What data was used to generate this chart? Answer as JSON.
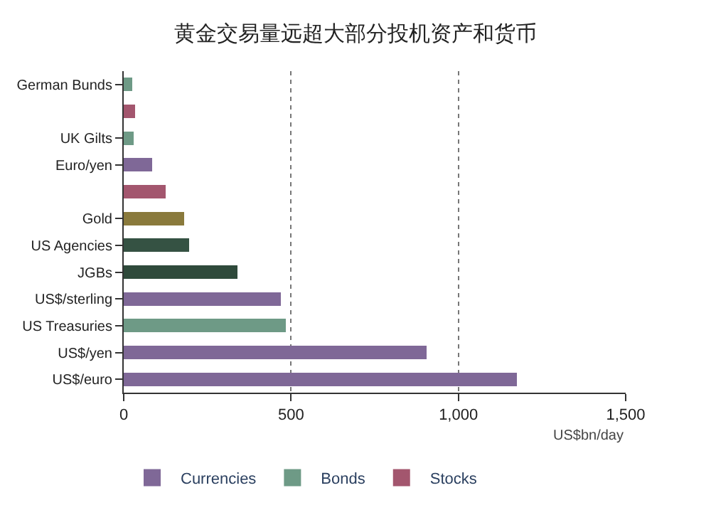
{
  "chart_data": {
    "type": "bar",
    "orientation": "horizontal",
    "stacked": true,
    "title": "黄金交易量远超大部分投机资产和货币",
    "categories": [
      "German Bunds",
      null,
      "UK Gilts",
      "Euro/yen",
      null,
      "Gold",
      "US Agencies",
      "JGBs",
      "US$/sterling",
      "US Treasuries",
      "US$/yen",
      "US$/euro"
    ],
    "series": [
      {
        "name": "Stocks",
        "color": "#a3566e",
        "values": [
          null,
          35,
          null,
          null,
          125,
          null,
          null,
          null,
          null,
          null,
          null,
          null
        ]
      },
      {
        "name": "Bonds",
        "color": "#6e9a86",
        "colors": [
          "#6e9a86",
          null,
          "#6e9a86",
          null,
          null,
          null,
          "#355243",
          "#2f4a3b",
          null,
          "#6e9a86",
          null,
          null
        ],
        "values": [
          25,
          null,
          30,
          null,
          null,
          null,
          195,
          340,
          null,
          485,
          null,
          null
        ]
      },
      {
        "name": "Currencies",
        "color": "#7f6897",
        "values": [
          null,
          null,
          null,
          85,
          null,
          null,
          null,
          null,
          470,
          null,
          905,
          1175
        ]
      },
      {
        "color": "#8a7a3c",
        "values": [
          null,
          null,
          null,
          null,
          null,
          180,
          null,
          null,
          null,
          null,
          null,
          null
        ]
      }
    ],
    "xlim": [
      0,
      1500
    ],
    "xticks": [
      0,
      500,
      {
        "value": 1000,
        "label": "1,000"
      },
      {
        "value": 1500,
        "label": "1,500"
      }
    ],
    "xlabel": "US$bn/day",
    "grid": "x",
    "legend": "bottom left"
  }
}
